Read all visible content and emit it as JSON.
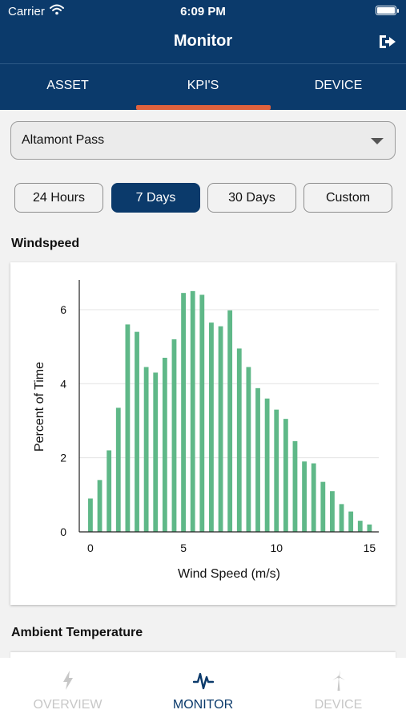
{
  "status_bar": {
    "carrier": "Carrier",
    "time": "6:09 PM"
  },
  "header": {
    "title": "Monitor",
    "logout_icon": "logout-icon"
  },
  "tabs": [
    {
      "label": "ASSET",
      "active": false
    },
    {
      "label": "KPI'S",
      "active": true
    },
    {
      "label": "DEVICE",
      "active": false
    }
  ],
  "site_select": {
    "value": "Altamont Pass"
  },
  "time_ranges": [
    {
      "label": "24 Hours",
      "active": false
    },
    {
      "label": "7 Days",
      "active": true
    },
    {
      "label": "30 Days",
      "active": false
    },
    {
      "label": "Custom",
      "active": false
    }
  ],
  "sections": {
    "windspeed": "Windspeed",
    "ambient_temperature": "Ambient Temperature"
  },
  "chart_data": {
    "type": "bar",
    "title": "",
    "xlabel": "Wind Speed (m/s)",
    "ylabel": "Percent of Time",
    "xlim": [
      -0.6,
      15.5
    ],
    "ylim": [
      0,
      6.8
    ],
    "xticks": [
      0,
      5,
      10,
      15
    ],
    "yticks": [
      0,
      2,
      4,
      6
    ],
    "grid": true,
    "color": "#5fb888",
    "x": [
      0,
      0.5,
      1,
      1.5,
      2,
      2.5,
      3,
      3.5,
      4,
      4.5,
      5,
      5.5,
      6,
      6.5,
      7,
      7.5,
      8,
      8.5,
      9,
      9.5,
      10,
      10.5,
      11,
      11.5,
      12,
      12.5,
      13,
      13.5,
      14,
      14.5,
      15
    ],
    "values": [
      0.9,
      1.4,
      2.2,
      3.35,
      5.6,
      5.4,
      4.45,
      4.3,
      4.7,
      5.2,
      6.45,
      6.5,
      6.4,
      5.65,
      5.55,
      5.98,
      4.95,
      4.45,
      3.88,
      3.6,
      3.3,
      3.05,
      2.45,
      1.9,
      1.85,
      1.35,
      1.1,
      0.75,
      0.55,
      0.3,
      0.2
    ]
  },
  "bottom_nav": [
    {
      "label": "OVERVIEW",
      "icon": "bolt-icon",
      "active": false
    },
    {
      "label": "MONITOR",
      "icon": "pulse-icon",
      "active": true
    },
    {
      "label": "DEVICE",
      "icon": "wind-turbine-icon",
      "active": false
    }
  ]
}
